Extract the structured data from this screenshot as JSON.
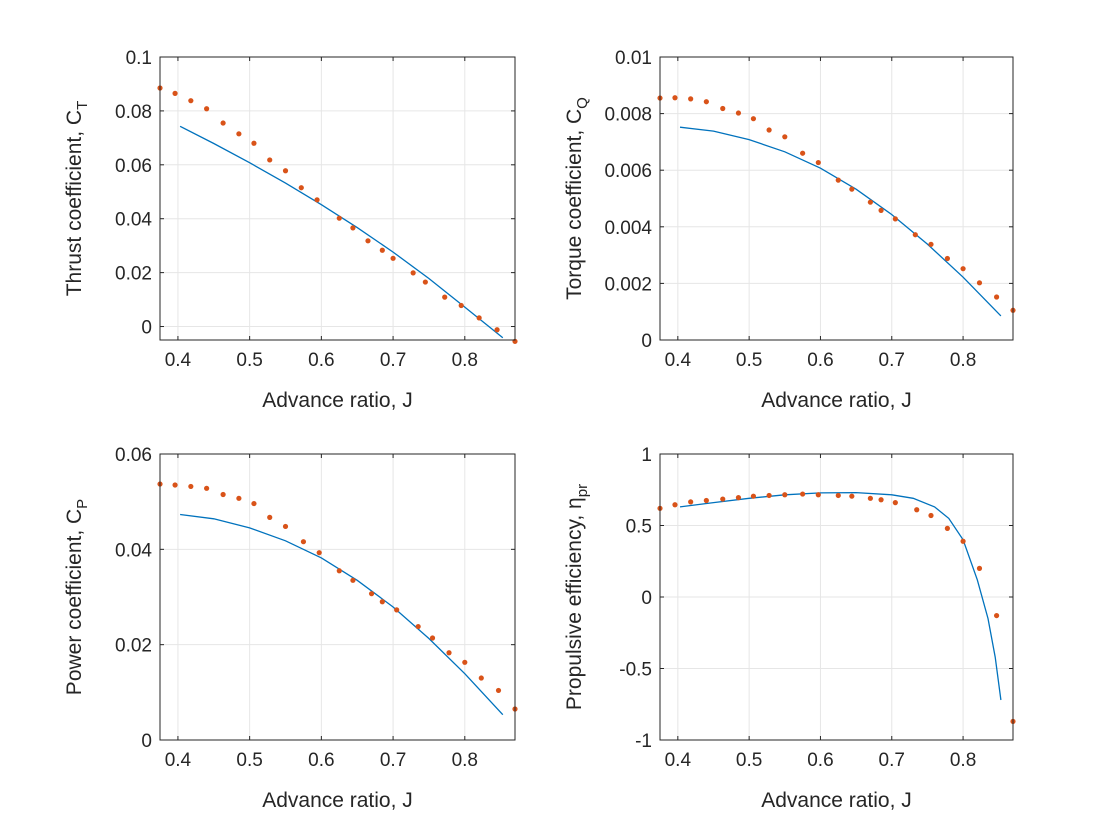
{
  "chart_data": [
    {
      "type": "line",
      "xlabel": "Advance ratio, J",
      "ylabel": "Thrust coefficient, C",
      "ylabel_sub": "T",
      "xlim": [
        0.375,
        0.87
      ],
      "ylim": [
        -0.005,
        0.1
      ],
      "xticks": [
        0.4,
        0.5,
        0.6,
        0.7,
        0.8
      ],
      "xtick_labels": [
        "0.4",
        "0.5",
        "0.6",
        "0.7",
        "0.8"
      ],
      "yticks": [
        0,
        0.02,
        0.04,
        0.06,
        0.08,
        0.1
      ],
      "ytick_labels": [
        "0",
        "0.02",
        "0.04",
        "0.06",
        "0.08",
        "0.1"
      ],
      "grid": true,
      "series": [
        {
          "style": "line",
          "color": "#0072bd",
          "x": [
            0.403,
            0.45,
            0.5,
            0.55,
            0.6,
            0.65,
            0.7,
            0.75,
            0.8,
            0.853
          ],
          "y": [
            0.0743,
            0.0679,
            0.0608,
            0.0532,
            0.0452,
            0.0367,
            0.0276,
            0.0178,
            0.0072,
            -0.0042
          ]
        },
        {
          "style": "markers",
          "color": "#d95319",
          "x": [
            0.375,
            0.396,
            0.418,
            0.44,
            0.463,
            0.485,
            0.506,
            0.528,
            0.55,
            0.572,
            0.594,
            0.625,
            0.644,
            0.665,
            0.685,
            0.7,
            0.728,
            0.745,
            0.772,
            0.795,
            0.82,
            0.845,
            0.87
          ],
          "y": [
            0.0885,
            0.0865,
            0.0838,
            0.0808,
            0.0755,
            0.0715,
            0.068,
            0.0618,
            0.0578,
            0.0515,
            0.047,
            0.0402,
            0.0366,
            0.0318,
            0.0283,
            0.0253,
            0.0199,
            0.0165,
            0.0109,
            0.0078,
            0.0032,
            -0.0012,
            -0.0055
          ]
        }
      ]
    },
    {
      "type": "line",
      "xlabel": "Advance ratio, J",
      "ylabel": "Torque coefficient, C",
      "ylabel_sub": "Q",
      "xlim": [
        0.375,
        0.87
      ],
      "ylim": [
        0,
        0.01
      ],
      "xticks": [
        0.4,
        0.5,
        0.6,
        0.7,
        0.8
      ],
      "xtick_labels": [
        "0.4",
        "0.5",
        "0.6",
        "0.7",
        "0.8"
      ],
      "yticks": [
        0,
        0.002,
        0.004,
        0.006,
        0.008,
        0.01
      ],
      "ytick_labels": [
        "0",
        "0.002",
        "0.004",
        "0.006",
        "0.008",
        "0.01"
      ],
      "grid": true,
      "series": [
        {
          "style": "line",
          "color": "#0072bd",
          "x": [
            0.403,
            0.45,
            0.5,
            0.55,
            0.6,
            0.65,
            0.7,
            0.75,
            0.8,
            0.853
          ],
          "y": [
            0.00752,
            0.00738,
            0.00708,
            0.00665,
            0.00607,
            0.00533,
            0.00443,
            0.00339,
            0.00222,
            0.00085
          ]
        },
        {
          "style": "markers",
          "color": "#d95319",
          "x": [
            0.375,
            0.396,
            0.418,
            0.44,
            0.463,
            0.485,
            0.506,
            0.528,
            0.55,
            0.575,
            0.597,
            0.625,
            0.644,
            0.67,
            0.685,
            0.705,
            0.733,
            0.755,
            0.778,
            0.8,
            0.823,
            0.847,
            0.87
          ],
          "y": [
            0.00855,
            0.00856,
            0.00852,
            0.00842,
            0.00818,
            0.00802,
            0.00782,
            0.00742,
            0.00718,
            0.0066,
            0.00627,
            0.00565,
            0.00533,
            0.00487,
            0.00458,
            0.00428,
            0.00372,
            0.00338,
            0.00288,
            0.00252,
            0.00202,
            0.00152,
            0.00105
          ]
        }
      ]
    },
    {
      "type": "line",
      "xlabel": "Advance ratio, J",
      "ylabel": "Power coefficient, C",
      "ylabel_sub": "P",
      "xlim": [
        0.375,
        0.87
      ],
      "ylim": [
        0,
        0.06
      ],
      "xticks": [
        0.4,
        0.5,
        0.6,
        0.7,
        0.8
      ],
      "xtick_labels": [
        "0.4",
        "0.5",
        "0.6",
        "0.7",
        "0.8"
      ],
      "yticks": [
        0,
        0.02,
        0.04,
        0.06
      ],
      "ytick_labels": [
        "0",
        "0.02",
        "0.04",
        "0.06"
      ],
      "grid": true,
      "series": [
        {
          "style": "line",
          "color": "#0072bd",
          "x": [
            0.403,
            0.45,
            0.5,
            0.55,
            0.6,
            0.65,
            0.7,
            0.75,
            0.8,
            0.853
          ],
          "y": [
            0.0473,
            0.0464,
            0.0445,
            0.0418,
            0.0382,
            0.0335,
            0.0279,
            0.0213,
            0.0139,
            0.0053
          ]
        },
        {
          "style": "markers",
          "color": "#d95319",
          "x": [
            0.375,
            0.396,
            0.418,
            0.44,
            0.463,
            0.485,
            0.506,
            0.528,
            0.55,
            0.575,
            0.597,
            0.625,
            0.644,
            0.67,
            0.685,
            0.705,
            0.735,
            0.755,
            0.778,
            0.8,
            0.823,
            0.847,
            0.87
          ],
          "y": [
            0.0537,
            0.0535,
            0.0532,
            0.0528,
            0.0515,
            0.0507,
            0.0496,
            0.0467,
            0.0448,
            0.0416,
            0.0393,
            0.0355,
            0.0335,
            0.0307,
            0.029,
            0.0273,
            0.0238,
            0.0214,
            0.0183,
            0.0163,
            0.013,
            0.0104,
            0.0065
          ]
        }
      ]
    },
    {
      "type": "line",
      "xlabel": "Advance ratio, J",
      "ylabel": "Propulsive efficiency, η",
      "ylabel_sub": "pr",
      "xlim": [
        0.375,
        0.87
      ],
      "ylim": [
        -1,
        1
      ],
      "xticks": [
        0.4,
        0.5,
        0.6,
        0.7,
        0.8
      ],
      "xtick_labels": [
        "0.4",
        "0.5",
        "0.6",
        "0.7",
        "0.8"
      ],
      "yticks": [
        -1,
        -0.5,
        0,
        0.5,
        1
      ],
      "ytick_labels": [
        "-1",
        "-0.5",
        "0",
        "0.5",
        "1"
      ],
      "grid": true,
      "series": [
        {
          "style": "line",
          "color": "#0072bd",
          "x": [
            0.403,
            0.45,
            0.5,
            0.55,
            0.6,
            0.65,
            0.7,
            0.73,
            0.76,
            0.78,
            0.8,
            0.82,
            0.835,
            0.845,
            0.853
          ],
          "y": [
            0.63,
            0.66,
            0.69,
            0.715,
            0.728,
            0.73,
            0.715,
            0.69,
            0.63,
            0.55,
            0.4,
            0.12,
            -0.15,
            -0.42,
            -0.72
          ]
        },
        {
          "style": "markers",
          "color": "#d95319",
          "x": [
            0.375,
            0.396,
            0.418,
            0.44,
            0.463,
            0.485,
            0.506,
            0.528,
            0.55,
            0.575,
            0.597,
            0.625,
            0.644,
            0.67,
            0.685,
            0.705,
            0.735,
            0.755,
            0.778,
            0.8,
            0.823,
            0.847,
            0.87
          ],
          "y": [
            0.62,
            0.645,
            0.665,
            0.675,
            0.685,
            0.695,
            0.705,
            0.71,
            0.715,
            0.72,
            0.715,
            0.71,
            0.705,
            0.69,
            0.68,
            0.66,
            0.61,
            0.57,
            0.48,
            0.39,
            0.2,
            -0.13,
            -0.87
          ]
        }
      ]
    }
  ]
}
